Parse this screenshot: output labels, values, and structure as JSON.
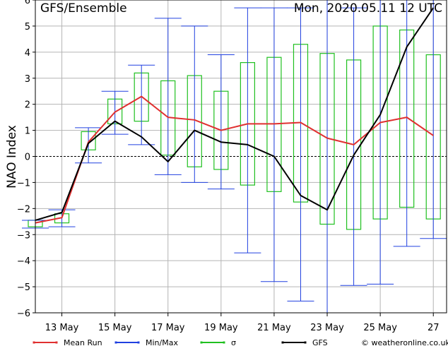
{
  "chart_data": {
    "type": "line",
    "title": "GFS/Ensemble",
    "run_label": "Mon, 2020.05.11   12 UTC",
    "ylabel": "NAO Index",
    "xlabel": "",
    "ylim": [
      -6,
      6
    ],
    "yticks": [
      -6,
      -5,
      -4,
      -3,
      -2,
      -1,
      0,
      1,
      2,
      3,
      4,
      5,
      6
    ],
    "xticks": [
      {
        "day": 13,
        "label": "13 May"
      },
      {
        "day": 15,
        "label": "15 May"
      },
      {
        "day": 17,
        "label": "17 May"
      },
      {
        "day": 19,
        "label": "19 May"
      },
      {
        "day": 21,
        "label": "21 May"
      },
      {
        "day": 23,
        "label": "23 May"
      },
      {
        "day": 25,
        "label": "25 May"
      },
      {
        "day": 27,
        "label": "27"
      }
    ],
    "grid": true,
    "zero_line": "dashed",
    "series": [
      {
        "name": "Mean Run",
        "color": "#e03030",
        "x": [
          12,
          13,
          14,
          15,
          16,
          17,
          18,
          19,
          20,
          21,
          22,
          23,
          24,
          25,
          26,
          27
        ],
        "values": [
          -2.55,
          -2.35,
          0.55,
          1.7,
          2.3,
          1.5,
          1.4,
          1.0,
          1.25,
          1.25,
          1.3,
          0.7,
          0.45,
          1.3,
          1.5,
          0.8
        ]
      },
      {
        "name": "GFS",
        "color": "#000000",
        "x": [
          12,
          13,
          14,
          15,
          16,
          17,
          18,
          19,
          20,
          21,
          22,
          23,
          24,
          25,
          26,
          27
        ],
        "values": [
          -2.45,
          -2.15,
          0.5,
          1.35,
          0.75,
          -0.2,
          1.0,
          0.55,
          0.45,
          0.0,
          -1.5,
          -2.05,
          0.05,
          1.6,
          4.2,
          5.7
        ]
      }
    ],
    "min_max": {
      "name": "Min/Max",
      "color": "#2040e0",
      "x": [
        12,
        13,
        14,
        15,
        16,
        17,
        18,
        19,
        20,
        21,
        22,
        23,
        24,
        25,
        26,
        27
      ],
      "min": [
        -2.75,
        -2.7,
        -0.25,
        0.85,
        0.45,
        -0.7,
        -1.0,
        -1.25,
        -3.7,
        -4.8,
        -5.55,
        -6.0,
        -4.95,
        -4.9,
        -3.45,
        -3.15
      ],
      "max": [
        -2.45,
        -2.05,
        1.1,
        2.5,
        3.5,
        5.3,
        5.0,
        3.9,
        5.7,
        5.7,
        5.7,
        6.0,
        5.7,
        6.0,
        6.0,
        6.0
      ]
    },
    "sigma": {
      "name": "σ",
      "color": "#20c020",
      "x": [
        12,
        13,
        14,
        15,
        16,
        17,
        18,
        19,
        20,
        21,
        22,
        23,
        24,
        25,
        26,
        27
      ],
      "low": [
        -2.7,
        -2.55,
        0.25,
        1.25,
        1.35,
        0.05,
        -0.4,
        -0.5,
        -1.1,
        -1.35,
        -1.75,
        -2.6,
        -2.8,
        -2.4,
        -1.95,
        -2.4
      ],
      "high": [
        -2.45,
        -2.2,
        0.95,
        2.2,
        3.2,
        2.9,
        3.1,
        2.5,
        3.6,
        3.8,
        4.3,
        3.95,
        3.7,
        5.0,
        4.85,
        3.9
      ]
    },
    "legend": {
      "placement": "bottom",
      "items": [
        {
          "label": "Mean Run",
          "color": "#e03030"
        },
        {
          "label": "Min/Max",
          "color": "#2040e0"
        },
        {
          "label": "σ",
          "color": "#20c020"
        },
        {
          "label": "GFS",
          "color": "#000000"
        }
      ]
    },
    "credit": "© weatheronline.co.uk"
  }
}
